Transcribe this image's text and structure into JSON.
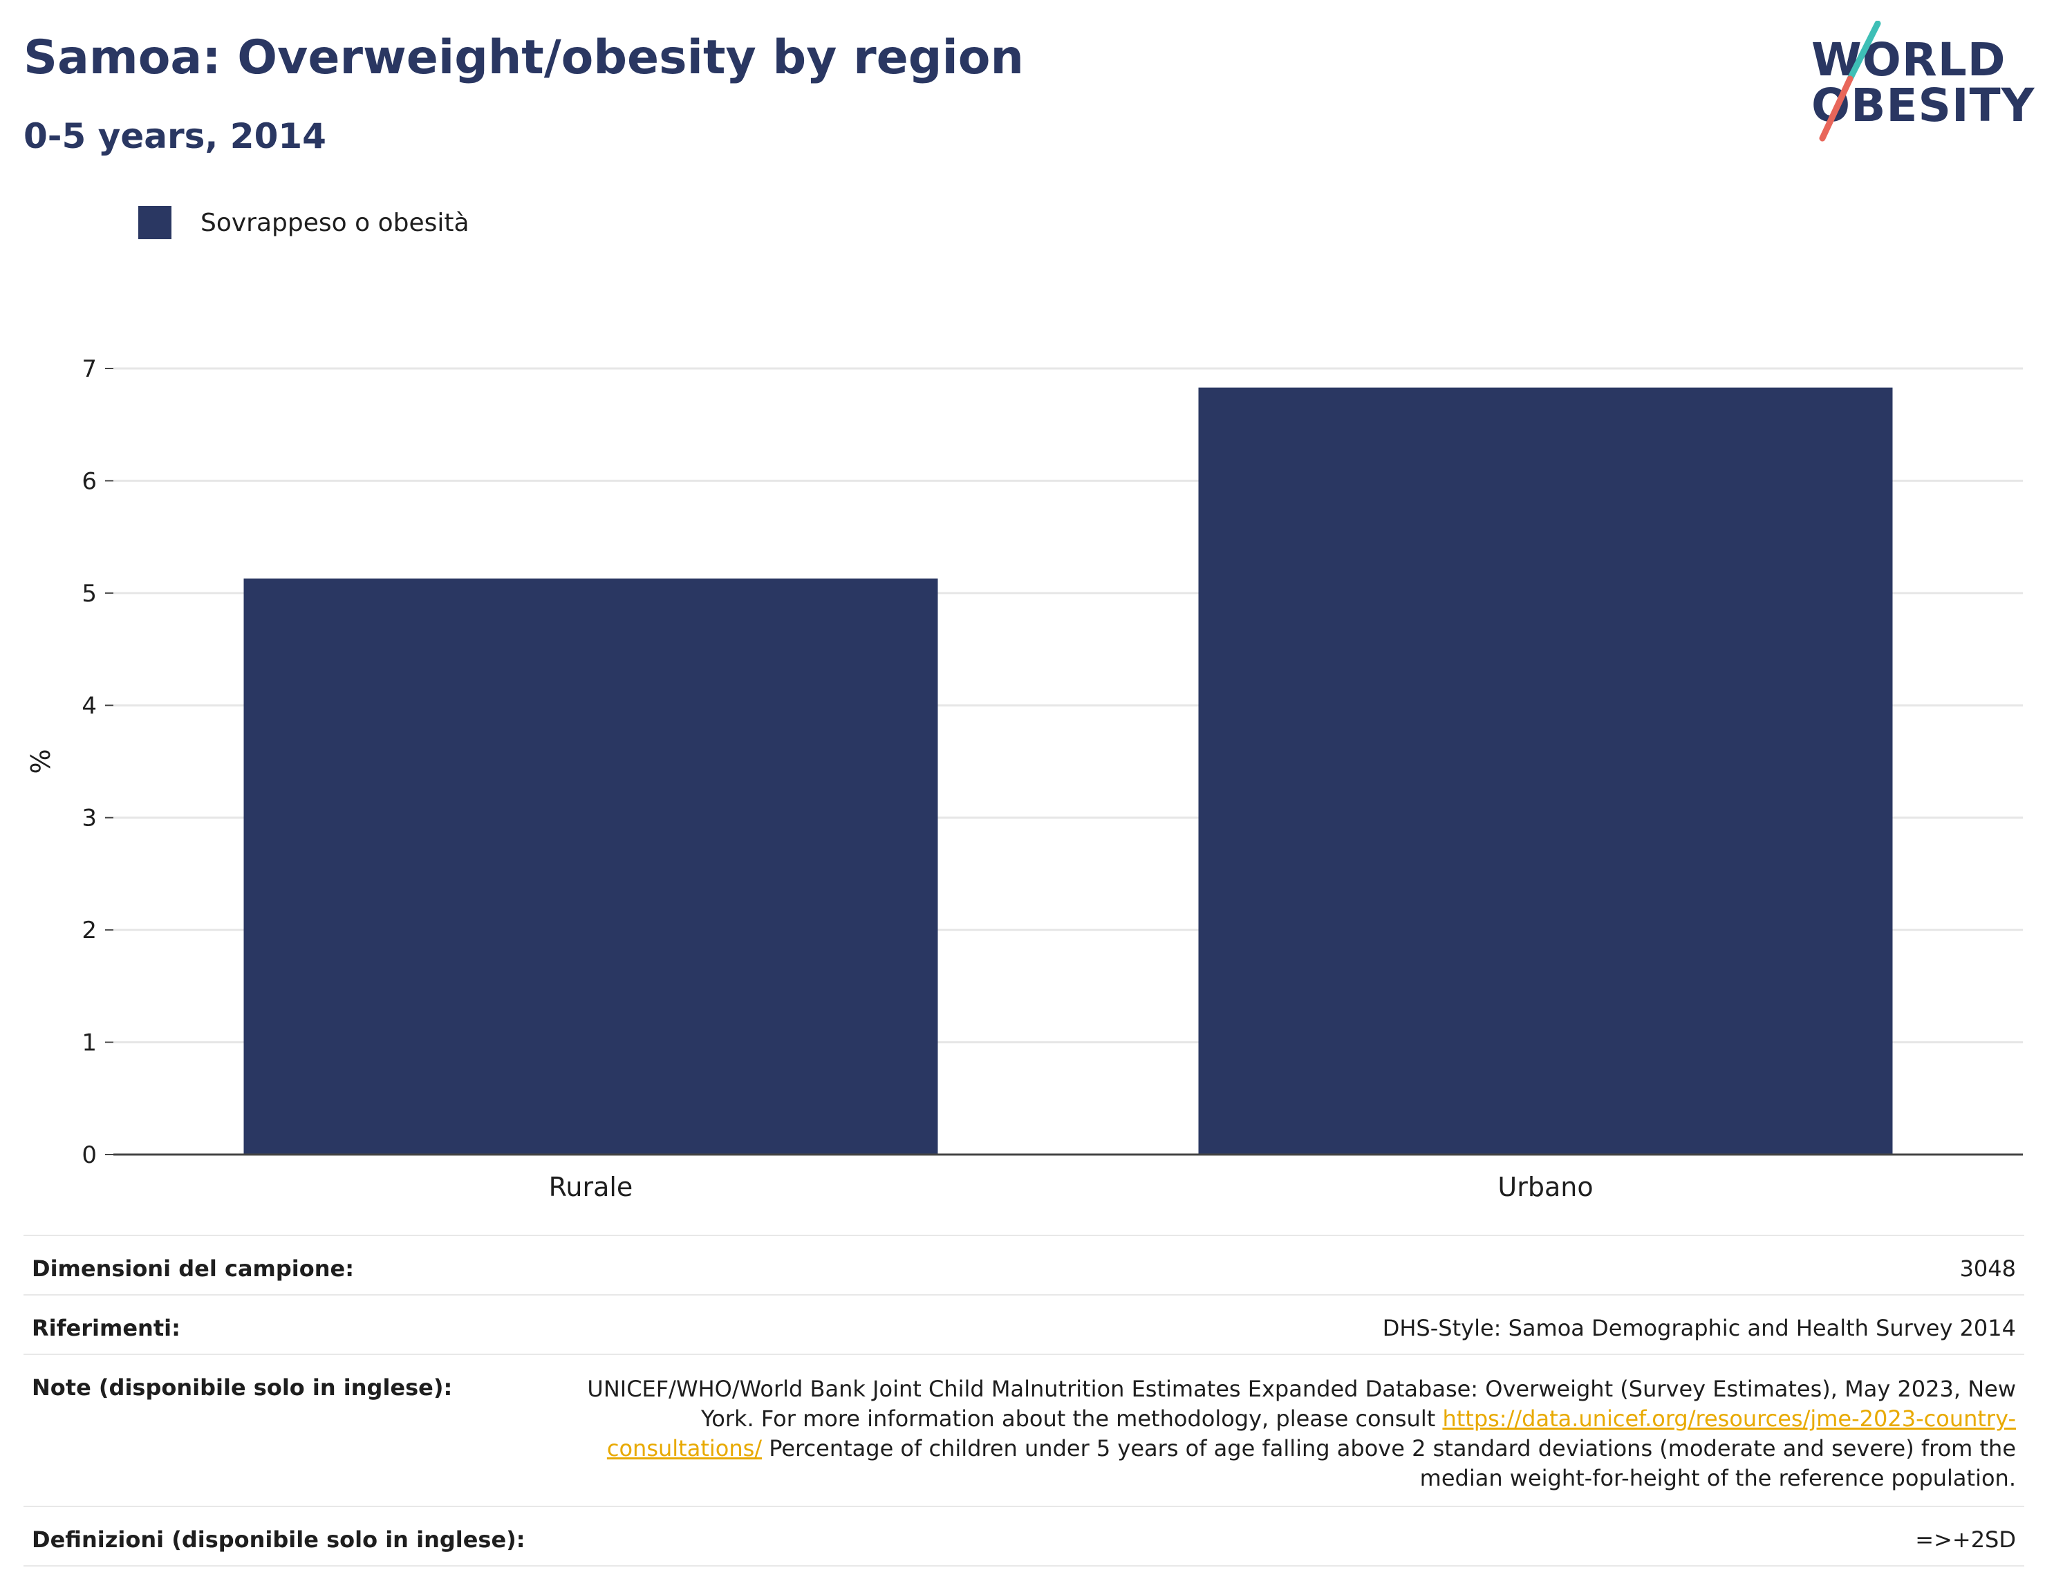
{
  "header": {
    "title": "Samoa: Overweight/obesity by region",
    "subtitle": "0-5 years, 2014"
  },
  "logo": {
    "line1": "WORLD",
    "line2": "OBESITY",
    "colors": {
      "navy": "#2a3762",
      "teal": "#3ebfb6",
      "coral": "#e8665a"
    }
  },
  "legend": {
    "label": "Sovrappeso o obesità",
    "color": "#2a3762"
  },
  "chart_data": {
    "type": "bar",
    "categories": [
      "Rurale",
      "Urbano"
    ],
    "series": [
      {
        "name": "Sovrappeso o obesità",
        "values": [
          5.13,
          6.83
        ],
        "color": "#2a3762"
      }
    ],
    "ylabel": "%",
    "xlabel": "",
    "ylim": [
      0,
      7
    ],
    "yticks": [
      0,
      1,
      2,
      3,
      4,
      5,
      6,
      7
    ],
    "grid": true,
    "legend_position": "top-left"
  },
  "footer": {
    "rows": [
      {
        "label": "Dimensioni del campione:",
        "value": "3048"
      },
      {
        "label": "Riferimenti:",
        "value": "DHS-Style: Samoa Demographic and Health Survey 2014"
      },
      {
        "label": "Note (disponibile solo in inglese):",
        "value_pre": "UNICEF/WHO/World Bank Joint Child Malnutrition Estimates Expanded Database: Overweight (Survey Estimates), May 2023, New York. For more information about the methodology, please consult ",
        "link": "https://data.unicef.org/resources/jme-2023-country-consultations/",
        "value_post": " Percentage of children under 5 years of age falling above 2 standard deviations (moderate and severe) from the median weight-for-height of the reference population."
      },
      {
        "label": "Definizioni (disponibile solo in inglese):",
        "value": "=>+2SD"
      }
    ]
  }
}
